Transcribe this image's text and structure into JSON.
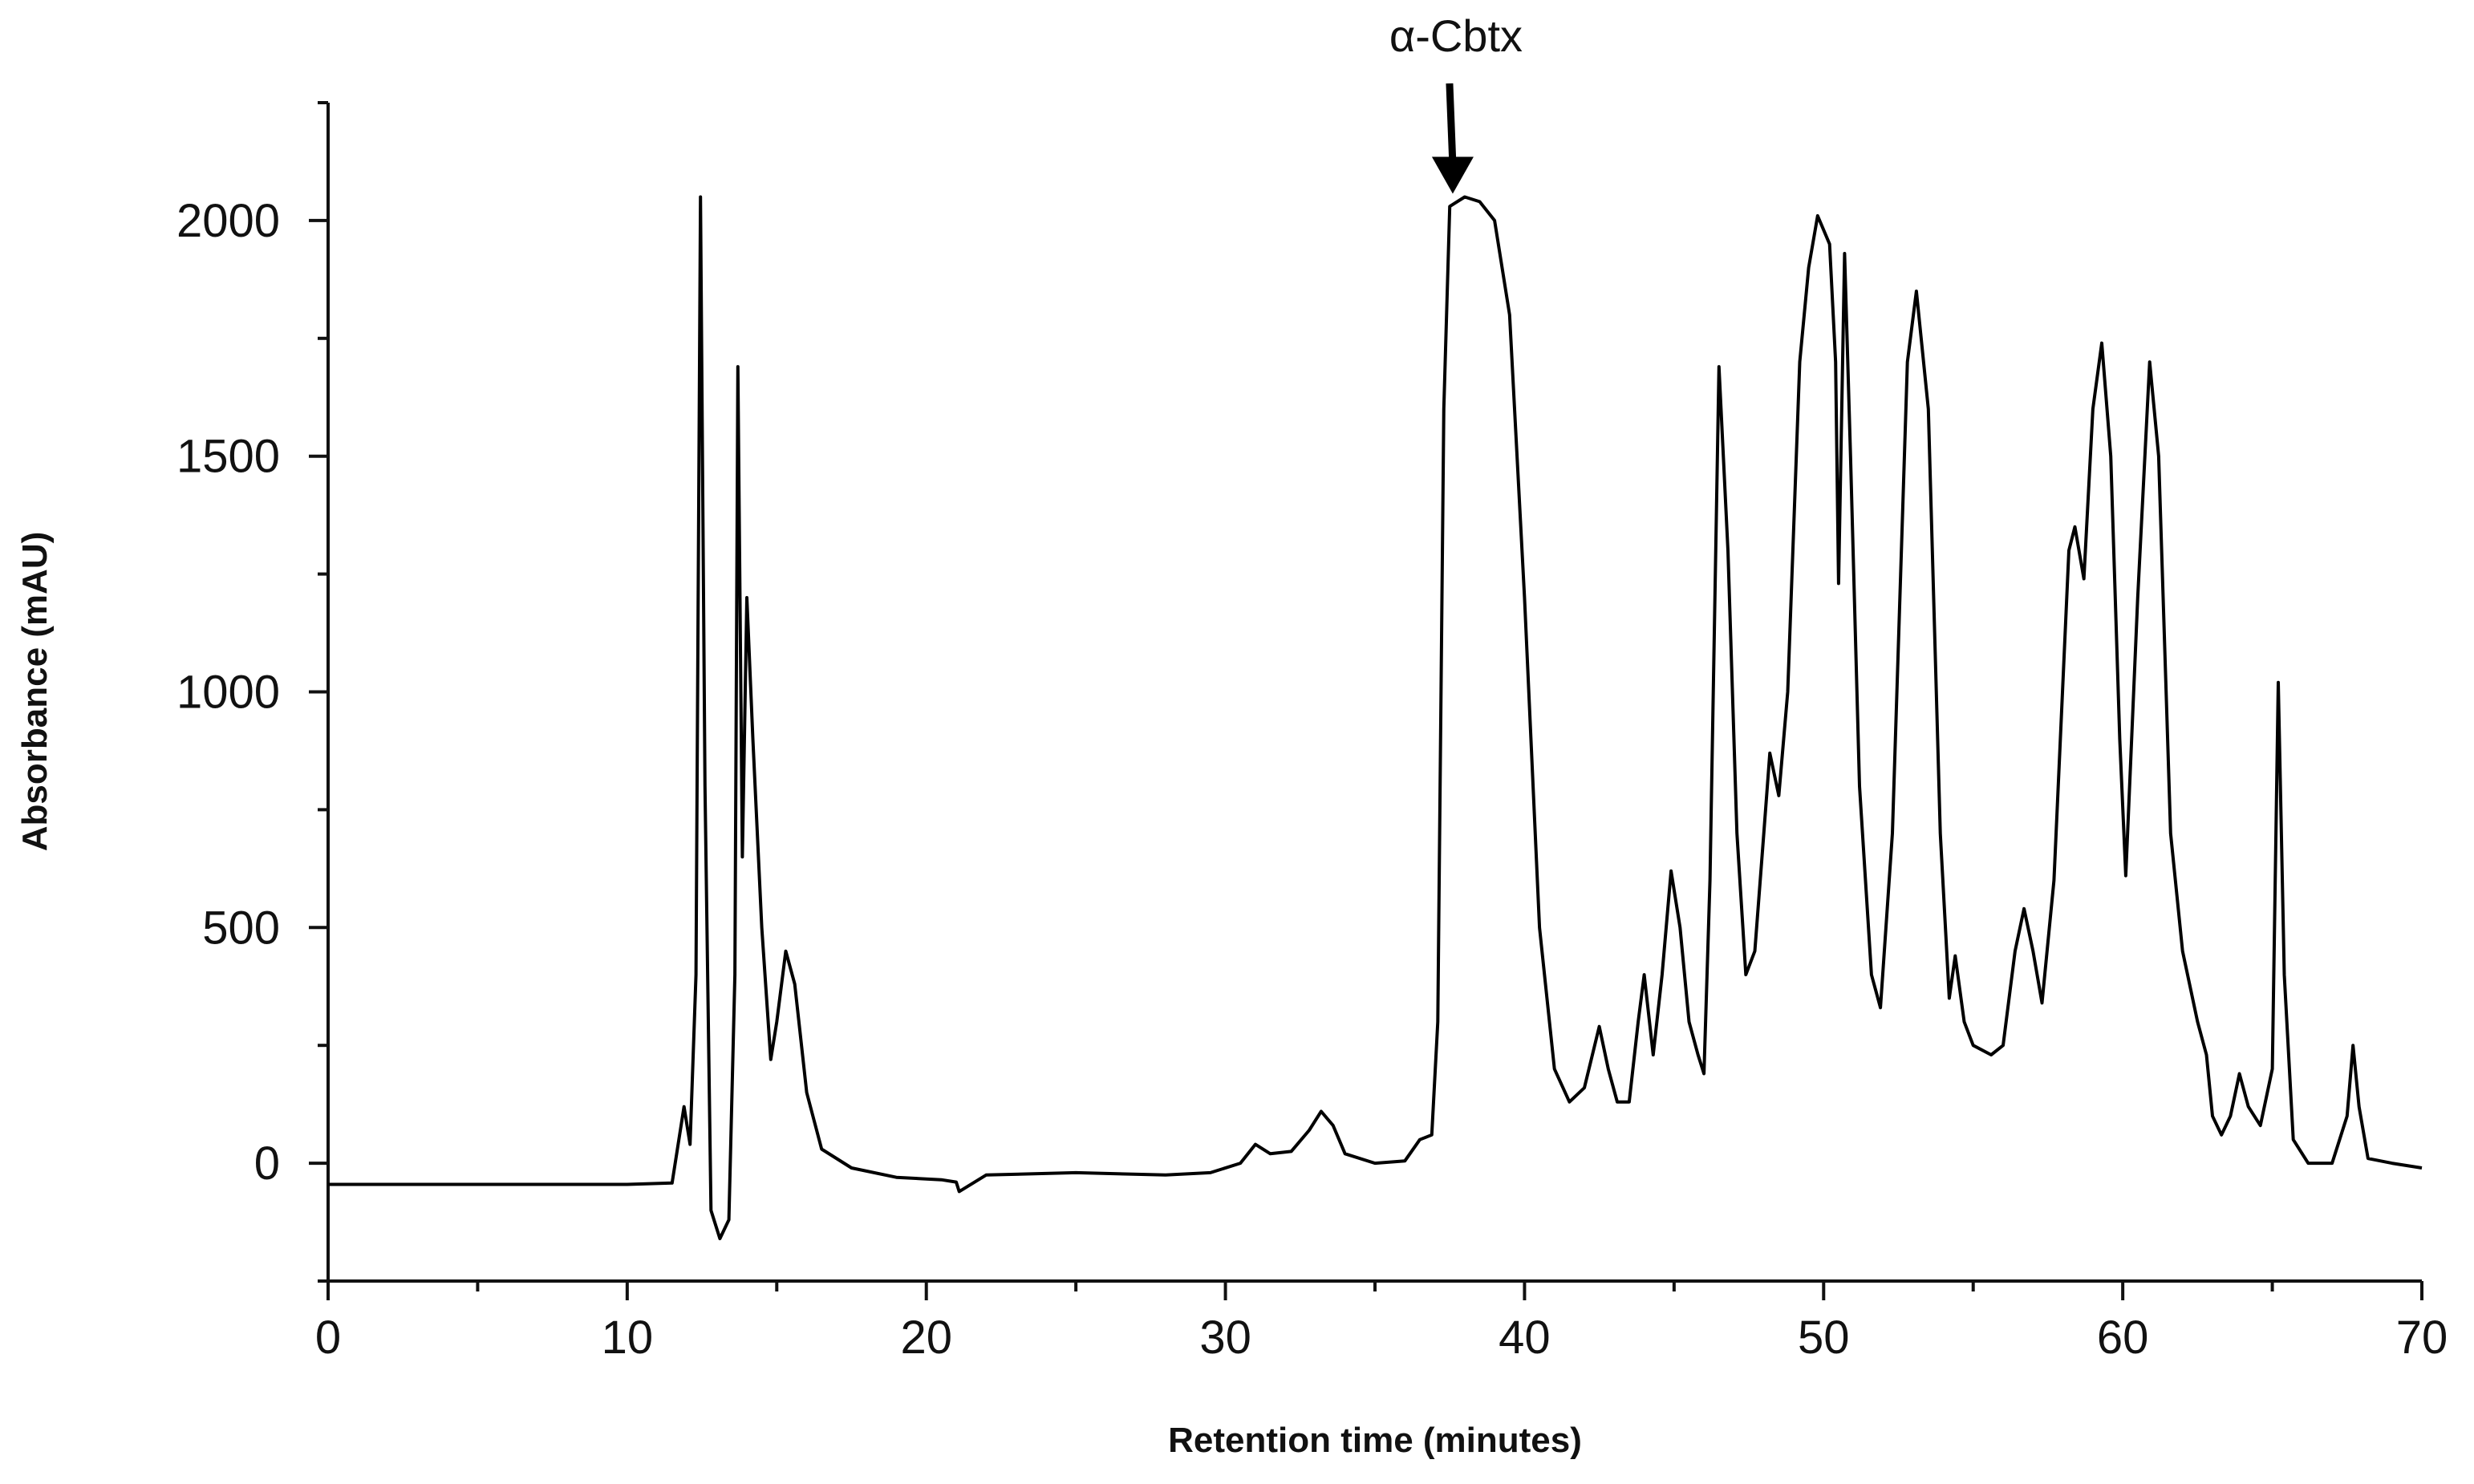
{
  "chart_data": {
    "type": "line",
    "xlabel": "Retention time (minutes)",
    "ylabel": "Absorbance (mAU)",
    "annotation": {
      "text": "α-Cbtx",
      "x": 37.6,
      "y": 2050
    },
    "xlim": [
      0,
      70
    ],
    "ylim": [
      -250,
      2250
    ],
    "xticks": [
      0,
      10,
      20,
      30,
      40,
      50,
      60,
      70
    ],
    "xminorticks": [
      5,
      15,
      25,
      35,
      45,
      55,
      65
    ],
    "yticks": [
      0,
      500,
      1000,
      1500,
      2000
    ],
    "yminorticks": [
      -250,
      250,
      750,
      1250,
      1750,
      2250
    ],
    "color": "#000000",
    "x": [
      0,
      10,
      11.5,
      11.9,
      12.1,
      12.3,
      12.45,
      12.6,
      12.8,
      13.1,
      13.4,
      13.6,
      13.7,
      13.85,
      14.0,
      14.2,
      14.5,
      14.8,
      15.0,
      15.3,
      15.6,
      16.0,
      16.5,
      17.5,
      19,
      20.5,
      21.0,
      21.1,
      22,
      25,
      28,
      29.5,
      30.5,
      31.0,
      31.5,
      32.2,
      32.8,
      33.2,
      33.6,
      34,
      35,
      36,
      36.5,
      36.9,
      37.1,
      37.3,
      37.5,
      38,
      38.5,
      39,
      39.5,
      40.0,
      40.5,
      41,
      41.5,
      42.0,
      42.5,
      42.8,
      43.1,
      43.5,
      43.8,
      44.0,
      44.3,
      44.6,
      44.9,
      45.2,
      45.5,
      45.8,
      46.0,
      46.2,
      46.5,
      46.8,
      47.1,
      47.4,
      47.7,
      48.0,
      48.2,
      48.5,
      48.8,
      49.2,
      49.5,
      49.8,
      50.2,
      50.4,
      50.5,
      50.7,
      50.9,
      51.2,
      51.6,
      51.9,
      52.3,
      52.8,
      53.1,
      53.5,
      53.9,
      54.2,
      54.4,
      54.7,
      55,
      55.6,
      56.0,
      56.4,
      56.7,
      57.0,
      57.3,
      57.7,
      58.2,
      58.4,
      58.7,
      59.0,
      59.3,
      59.6,
      59.9,
      60.1,
      60.5,
      60.9,
      61.2,
      61.6,
      62.0,
      62.5,
      62.8,
      63.0,
      63.3,
      63.6,
      63.9,
      64.2,
      64.6,
      65.0,
      65.2,
      65.4,
      65.7,
      66.2,
      67.0,
      67.5,
      67.7,
      67.9,
      68.2,
      69,
      70
    ],
    "values": [
      -45,
      -45,
      -42,
      120,
      40,
      400,
      2050,
      800,
      -100,
      -160,
      -120,
      400,
      1690,
      650,
      1200,
      900,
      500,
      220,
      300,
      450,
      380,
      150,
      30,
      -10,
      -30,
      -35,
      -40,
      -60,
      -25,
      -20,
      -25,
      -20,
      0,
      40,
      20,
      25,
      70,
      110,
      80,
      20,
      0,
      5,
      50,
      60,
      300,
      1600,
      2030,
      2050,
      2040,
      2000,
      1800,
      1200,
      500,
      200,
      130,
      160,
      290,
      200,
      130,
      130,
      300,
      400,
      230,
      400,
      620,
      500,
      300,
      230,
      190,
      600,
      1690,
      1300,
      700,
      400,
      450,
      700,
      870,
      780,
      1000,
      1700,
      1900,
      2010,
      1950,
      1700,
      1230,
      1930,
      1500,
      800,
      400,
      330,
      700,
      1700,
      1850,
      1600,
      700,
      350,
      440,
      300,
      250,
      230,
      250,
      450,
      540,
      450,
      340,
      600,
      1300,
      1350,
      1240,
      1600,
      1740,
      1500,
      900,
      610,
      1200,
      1700,
      1500,
      700,
      450,
      300,
      230,
      100,
      60,
      100,
      190,
      120,
      80,
      200,
      1020,
      400,
      50,
      0,
      0,
      100,
      250,
      120,
      10,
      0,
      -10
    ]
  }
}
